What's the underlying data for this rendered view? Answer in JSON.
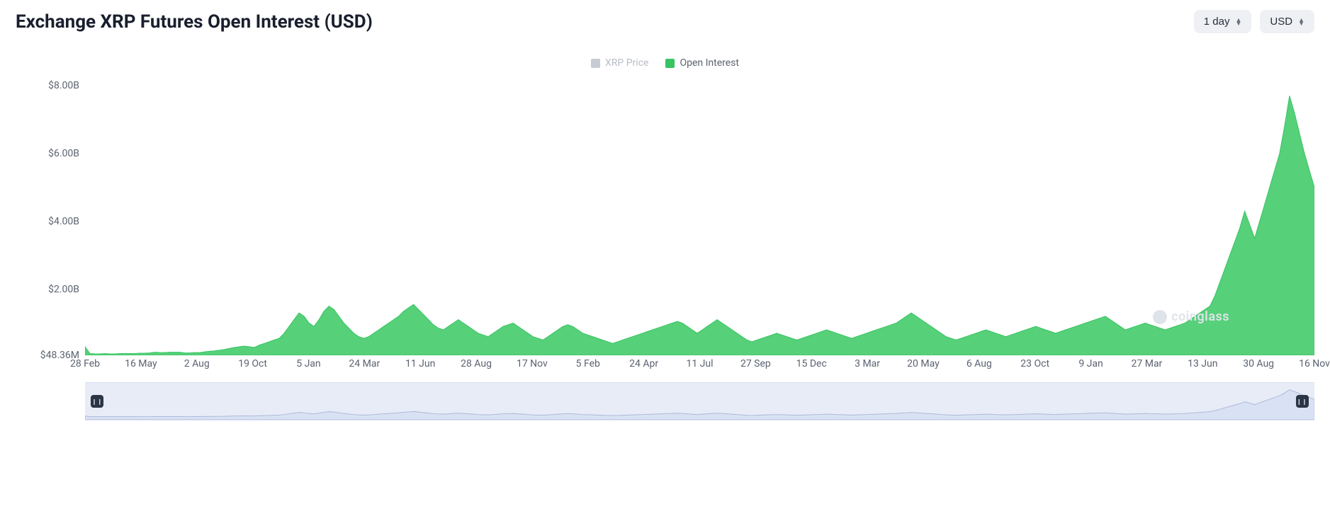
{
  "title": "Exchange XRP Futures Open Interest (USD)",
  "controls": {
    "interval": {
      "label": "1 day"
    },
    "currency": {
      "label": "USD"
    }
  },
  "legend": [
    {
      "label": "XRP Price",
      "color": "#c7cbd3",
      "enabled": false
    },
    {
      "label": "Open Interest",
      "color": "#37c461",
      "enabled": true
    }
  ],
  "watermark": "coinglass",
  "chart": {
    "type": "area",
    "background_color": "#ffffff",
    "series_color": "#37c461",
    "series_fill": "#57d07a",
    "y_axis": {
      "unit": "USD",
      "min": 48360000,
      "max": 8400000000,
      "ticks": [
        {
          "value": 8000000000,
          "label": "$8.00B"
        },
        {
          "value": 6000000000,
          "label": "$6.00B"
        },
        {
          "value": 4000000000,
          "label": "$4.00B"
        },
        {
          "value": 2000000000,
          "label": "$2.00B"
        },
        {
          "value": 48360000,
          "label": "$48.36M"
        }
      ],
      "label_color": "#5b6270",
      "label_fontsize": 14
    },
    "x_axis": {
      "labels": [
        "28 Feb",
        "16 May",
        "2 Aug",
        "19 Oct",
        "5 Jan",
        "24 Mar",
        "11 Jun",
        "28 Aug",
        "17 Nov",
        "5 Feb",
        "24 Apr",
        "11 Jul",
        "27 Sep",
        "15 Dec",
        "3 Mar",
        "20 May",
        "6 Aug",
        "23 Oct",
        "9 Jan",
        "27 Mar",
        "13 Jun",
        "30 Aug",
        "16 Nov"
      ],
      "label_color": "#5b6270",
      "label_fontsize": 14
    },
    "series": {
      "name": "Open Interest",
      "values_billion": [
        0.3,
        0.1,
        0.09,
        0.09,
        0.1,
        0.09,
        0.09,
        0.1,
        0.1,
        0.1,
        0.1,
        0.11,
        0.11,
        0.12,
        0.14,
        0.13,
        0.13,
        0.14,
        0.14,
        0.14,
        0.12,
        0.12,
        0.13,
        0.13,
        0.15,
        0.17,
        0.18,
        0.2,
        0.22,
        0.25,
        0.28,
        0.3,
        0.32,
        0.3,
        0.28,
        0.35,
        0.4,
        0.45,
        0.5,
        0.55,
        0.7,
        0.9,
        1.1,
        1.3,
        1.2,
        1.0,
        0.9,
        1.1,
        1.35,
        1.5,
        1.4,
        1.2,
        1.0,
        0.85,
        0.7,
        0.6,
        0.55,
        0.6,
        0.7,
        0.8,
        0.9,
        1.0,
        1.1,
        1.2,
        1.35,
        1.45,
        1.55,
        1.4,
        1.25,
        1.1,
        0.95,
        0.85,
        0.8,
        0.9,
        1.0,
        1.1,
        1.0,
        0.9,
        0.8,
        0.7,
        0.65,
        0.6,
        0.7,
        0.8,
        0.9,
        0.95,
        1.0,
        0.9,
        0.8,
        0.7,
        0.6,
        0.55,
        0.5,
        0.6,
        0.7,
        0.8,
        0.9,
        0.95,
        0.9,
        0.8,
        0.7,
        0.65,
        0.6,
        0.55,
        0.5,
        0.45,
        0.4,
        0.45,
        0.5,
        0.55,
        0.6,
        0.65,
        0.7,
        0.75,
        0.8,
        0.85,
        0.9,
        0.95,
        1.0,
        1.05,
        1.0,
        0.9,
        0.8,
        0.7,
        0.8,
        0.9,
        1.0,
        1.1,
        1.0,
        0.9,
        0.8,
        0.7,
        0.6,
        0.5,
        0.45,
        0.5,
        0.55,
        0.6,
        0.65,
        0.7,
        0.65,
        0.6,
        0.55,
        0.5,
        0.55,
        0.6,
        0.65,
        0.7,
        0.75,
        0.8,
        0.75,
        0.7,
        0.65,
        0.6,
        0.55,
        0.6,
        0.65,
        0.7,
        0.75,
        0.8,
        0.85,
        0.9,
        0.95,
        1.0,
        1.1,
        1.2,
        1.3,
        1.2,
        1.1,
        1.0,
        0.9,
        0.8,
        0.7,
        0.6,
        0.55,
        0.5,
        0.55,
        0.6,
        0.65,
        0.7,
        0.75,
        0.8,
        0.75,
        0.7,
        0.65,
        0.6,
        0.65,
        0.7,
        0.75,
        0.8,
        0.85,
        0.9,
        0.85,
        0.8,
        0.75,
        0.7,
        0.75,
        0.8,
        0.85,
        0.9,
        0.95,
        1.0,
        1.05,
        1.1,
        1.15,
        1.2,
        1.1,
        1.0,
        0.9,
        0.8,
        0.85,
        0.9,
        0.95,
        1.0,
        0.95,
        0.9,
        0.85,
        0.8,
        0.85,
        0.9,
        0.95,
        1.0,
        1.1,
        1.2,
        1.3,
        1.4,
        1.5,
        1.8,
        2.2,
        2.6,
        3.0,
        3.4,
        3.8,
        4.3,
        3.9,
        3.5,
        4.0,
        4.5,
        5.0,
        5.5,
        6.0,
        6.8,
        7.7,
        7.2,
        6.6,
        6.0,
        5.5,
        5.0
      ]
    }
  },
  "navigator": {
    "background_color": "#e7ecf7",
    "line_color": "#aeb9d8",
    "handle_color": "#2b3544",
    "range": {
      "start_pct": 1.0,
      "end_pct": 99.0
    }
  }
}
